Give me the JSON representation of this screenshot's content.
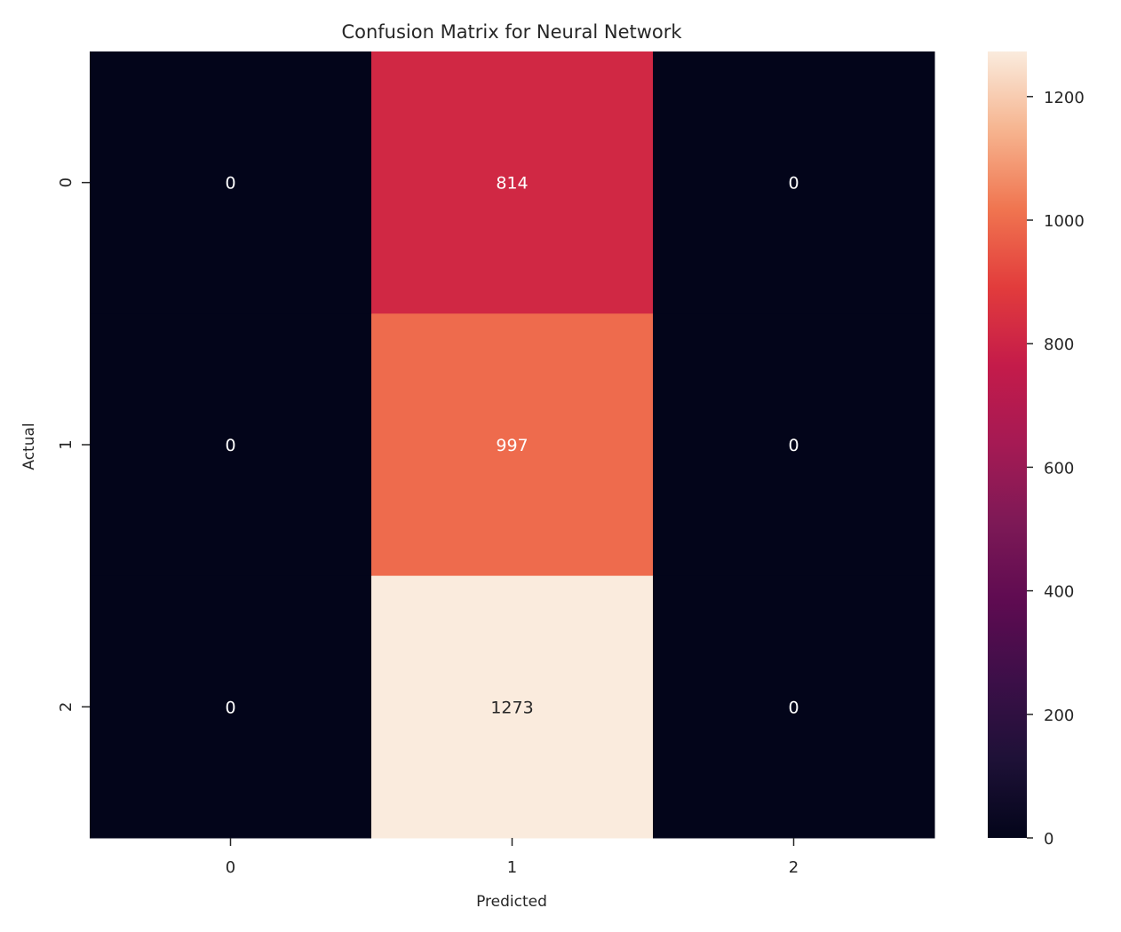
{
  "chart_data": {
    "type": "heatmap",
    "title": "Confusion Matrix for Neural Network",
    "xlabel": "Predicted",
    "ylabel": "Actual",
    "x_categories": [
      "0",
      "1",
      "2"
    ],
    "y_categories": [
      "0",
      "1",
      "2"
    ],
    "values": [
      [
        0,
        814,
        0
      ],
      [
        0,
        997,
        0
      ],
      [
        0,
        1273,
        0
      ]
    ],
    "colorbar": {
      "min": 0,
      "max": 1273,
      "ticks": [
        0,
        200,
        400,
        600,
        800,
        1000,
        1200
      ],
      "colormap": "rocket"
    },
    "annotation_colors": {
      "light": "#ffffff",
      "dark": "#262626"
    }
  }
}
